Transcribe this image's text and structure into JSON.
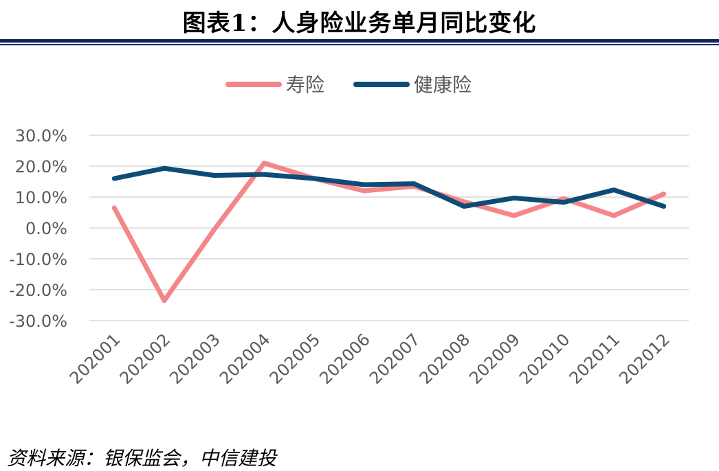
{
  "page": {
    "title": "图表1：人身险业务单月同比变化",
    "source": "资料来源：银保监会，中信建投"
  },
  "chart_data": {
    "type": "line",
    "categories": [
      "202001",
      "202002",
      "202003",
      "202004",
      "202005",
      "202006",
      "202007",
      "202008",
      "202009",
      "202010",
      "202011",
      "202012"
    ],
    "series": [
      {
        "name": "寿险",
        "color": "#f4868a",
        "values": [
          6.5,
          -23.5,
          -0.5,
          21.0,
          16.0,
          12.0,
          13.5,
          8.5,
          4.0,
          9.5,
          4.0,
          11.0
        ]
      },
      {
        "name": "健康险",
        "color": "#0e4c78",
        "values": [
          16.0,
          19.3,
          17.0,
          17.3,
          16.0,
          14.0,
          14.3,
          7.0,
          9.7,
          8.3,
          12.3,
          7.0
        ]
      }
    ],
    "yticks": [
      "30.0%",
      "20.0%",
      "10.0%",
      "0.0%",
      "-10.0%",
      "-20.0%",
      "-30.0%"
    ],
    "ylim": [
      -30,
      30
    ],
    "grid": true,
    "legend": "top"
  }
}
